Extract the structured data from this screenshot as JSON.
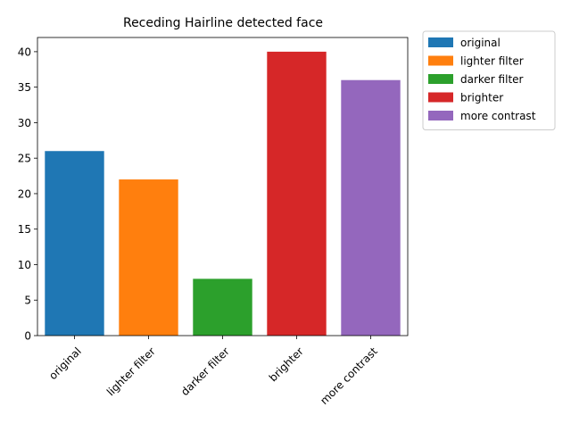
{
  "chart_data": {
    "type": "bar",
    "title": "Receding Hairline detected face",
    "xlabel": "",
    "ylabel": "",
    "categories": [
      "original",
      "lighter filter",
      "darker filter",
      "brighter",
      "more contrast"
    ],
    "values": [
      26,
      22,
      8,
      40,
      36
    ],
    "colors": [
      "#1f77b4",
      "#ff7f0e",
      "#2ca02c",
      "#d62728",
      "#9467bd"
    ],
    "ylim": [
      0,
      42
    ],
    "yticks": [
      0,
      5,
      10,
      15,
      20,
      25,
      30,
      35,
      40
    ],
    "grid": false,
    "legend": {
      "placement": "outside-top-right",
      "entries": [
        "original",
        "lighter filter",
        "darker filter",
        "brighter",
        "more contrast"
      ]
    }
  }
}
